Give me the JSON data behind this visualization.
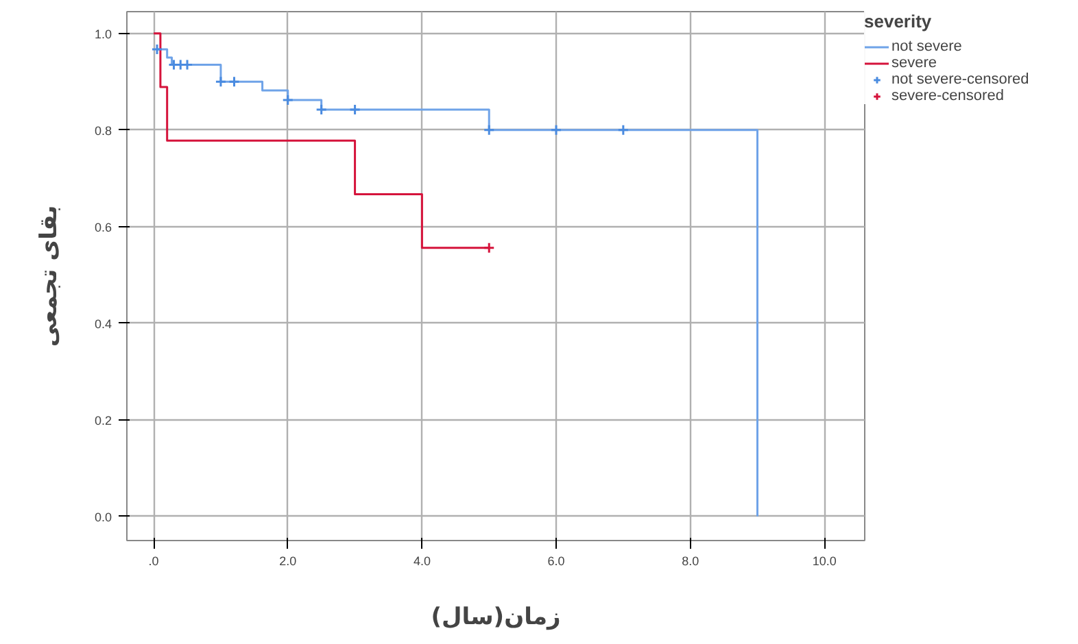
{
  "chart_data": {
    "type": "step",
    "xlabel": "زمان(سال)",
    "ylabel": "بقای تجمعی",
    "legend_title": "severity",
    "legend": "top right",
    "grid": true,
    "xlim": [
      -0.4,
      10.6
    ],
    "ylim": [
      -0.05,
      1.045
    ],
    "xticks": [
      {
        "value": 0,
        "label": ".0"
      },
      {
        "value": 2,
        "label": "2.0"
      },
      {
        "value": 4,
        "label": "4.0"
      },
      {
        "value": 6,
        "label": "6.0"
      },
      {
        "value": 8,
        "label": "8.0"
      },
      {
        "value": 10,
        "label": "10.0"
      }
    ],
    "yticks": [
      {
        "value": 0,
        "label": "0.0"
      },
      {
        "value": 0.2,
        "label": "0.2"
      },
      {
        "value": 0.4,
        "label": "0.4"
      },
      {
        "value": 0.6,
        "label": "0.6"
      },
      {
        "value": 0.8,
        "label": "0.8"
      },
      {
        "value": 1.0,
        "label": "1.0"
      }
    ],
    "series": [
      {
        "name": "not severe",
        "color": "#6fa3e8",
        "x": [
          0.05,
          0.2,
          0.27,
          1.0,
          1.62,
          2.0,
          2.5,
          5.0,
          9.0
        ],
        "values": [
          0.967,
          0.95,
          0.935,
          0.9,
          0.882,
          0.862,
          0.842,
          0.8,
          0.0
        ]
      },
      {
        "name": "severe",
        "color": "#d5133b",
        "x": [
          0,
          0.1,
          0.2,
          3.0,
          4.0,
          5.0
        ],
        "values": [
          1.0,
          0.889,
          0.778,
          0.667,
          0.556,
          0.556
        ]
      },
      {
        "name": "not severe-censored",
        "type": "scatter",
        "marker": "cross",
        "color": "#4a8be0",
        "x": [
          0.05,
          0.3,
          0.4,
          0.5,
          1.0,
          1.2,
          2.0,
          2.5,
          3.0,
          5.0,
          6.0,
          7.0
        ],
        "values": [
          0.967,
          0.935,
          0.935,
          0.935,
          0.9,
          0.9,
          0.862,
          0.842,
          0.842,
          0.8,
          0.8,
          0.8
        ]
      },
      {
        "name": "severe-censored",
        "type": "scatter",
        "marker": "cross",
        "color": "#d5133b",
        "x": [
          5.0
        ],
        "values": [
          0.556
        ]
      }
    ]
  }
}
